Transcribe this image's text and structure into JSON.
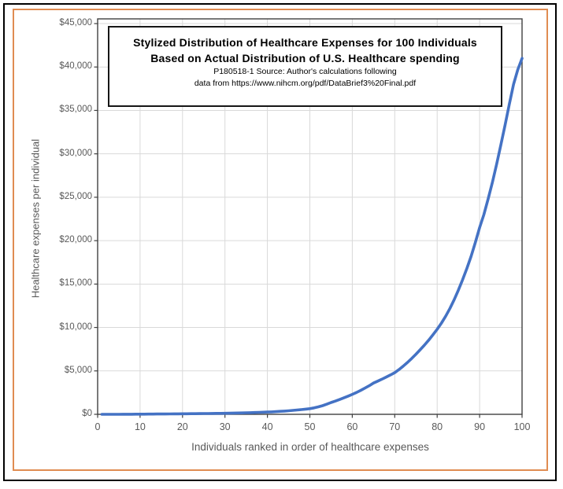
{
  "frame": {
    "outer_border_color": "#000000",
    "inner_border_color": "#E08C52",
    "background": "#FFFFFF"
  },
  "title_box": {
    "line1": "Stylized Distribution of Healthcare Expenses for 100 Individuals",
    "line2": "Based on Actual Distribution of U.S. Healthcare spending",
    "line3": "P180518-1 Source: Author's calculations following",
    "line4": "data from https://www.nihcm.org/pdf/DataBrief3%20Final.pdf"
  },
  "chart_data": {
    "type": "line",
    "title": "Stylized Distribution of Healthcare Expenses for 100 Individuals Based on Actual Distribution of U.S. Healthcare spending",
    "xlabel": "Individuals ranked in order of healthcare expenses",
    "ylabel": "Healthcare expenses per individual",
    "xlim": [
      0,
      100
    ],
    "ylim": [
      0,
      45000
    ],
    "grid": true,
    "legend": "none",
    "line_color": "#4472C4",
    "gridline_color": "#D9D9D9",
    "axis_line_color": "#404040",
    "axis_text_color": "#595959",
    "x_tick_labels": [
      "0",
      "10",
      "20",
      "30",
      "40",
      "50",
      "60",
      "70",
      "80",
      "90",
      "100"
    ],
    "y_tick_labels": [
      "$45,000",
      "$40,000",
      "$35,000",
      "$30,000",
      "$25,000",
      "$20,000",
      "$15,000",
      "$10,000",
      "$5,000",
      "$0"
    ],
    "y_tick_values": [
      45000,
      40000,
      35000,
      30000,
      25000,
      20000,
      15000,
      10000,
      5000,
      0
    ],
    "series": [
      {
        "name": "Healthcare expenses per individual",
        "x_start": 1,
        "x_end": 100,
        "values": [
          0,
          0,
          0,
          0,
          0,
          5,
          10,
          12,
          15,
          18,
          21,
          25,
          28,
          32,
          36,
          40,
          45,
          50,
          55,
          60,
          65,
          70,
          76,
          82,
          88,
          94,
          100,
          107,
          113,
          120,
          131,
          142,
          153,
          165,
          178,
          192,
          207,
          223,
          241,
          260,
          285,
          312,
          342,
          375,
          411,
          451,
          494,
          542,
          594,
          650,
          740,
          860,
          1000,
          1170,
          1360,
          1520,
          1700,
          1890,
          2090,
          2300,
          2520,
          2760,
          3020,
          3300,
          3600,
          3820,
          4050,
          4290,
          4540,
          4800,
          5150,
          5550,
          5980,
          6440,
          6930,
          7430,
          7970,
          8540,
          9150,
          9800,
          10500,
          11300,
          12200,
          13200,
          14300,
          15500,
          16800,
          18200,
          19800,
          21500,
          23000,
          24800,
          26700,
          28800,
          31000,
          33300,
          35700,
          38000,
          39700,
          41000
        ]
      }
    ]
  }
}
